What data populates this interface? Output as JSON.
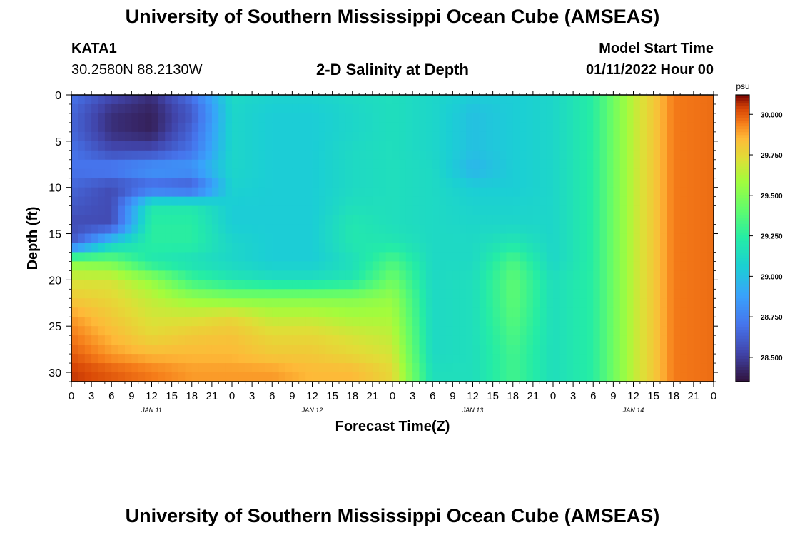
{
  "header": {
    "title": "University of Southern Mississippi Ocean Cube (AMSEAS)",
    "station_id": "KATA1",
    "station_coords": "30.2580N  88.2130W",
    "plot_title": "2-D Salinity at Depth",
    "model_start_label": "Model Start Time",
    "model_start_value": "01/11/2022 Hour 00"
  },
  "footer": {
    "repeated_title": "University of Southern Mississippi Ocean Cube (AMSEAS)"
  },
  "chart_data": {
    "type": "heatmap",
    "title": "2-D Salinity at Depth",
    "xlabel": "Forecast Time(Z)",
    "ylabel": "Depth (ft)",
    "units": "psu",
    "x_range_hours": [
      0,
      96
    ],
    "y_range_ft": [
      0,
      31
    ],
    "y_inverted": true,
    "x_tick_labels": [
      "0",
      "3",
      "6",
      "9",
      "12",
      "15",
      "18",
      "21",
      "0",
      "3",
      "6",
      "9",
      "12",
      "15",
      "18",
      "21",
      "0",
      "3",
      "6",
      "9",
      "12",
      "15",
      "18",
      "21",
      "0",
      "3",
      "6",
      "9",
      "12",
      "15",
      "18",
      "21",
      "0"
    ],
    "x_tick_hours": [
      0,
      3,
      6,
      9,
      12,
      15,
      18,
      21,
      24,
      27,
      30,
      33,
      36,
      39,
      42,
      45,
      48,
      51,
      54,
      57,
      60,
      63,
      66,
      69,
      72,
      75,
      78,
      81,
      84,
      87,
      90,
      93,
      96
    ],
    "date_labels": [
      {
        "label": "JAN 11",
        "hour": 12
      },
      {
        "label": "JAN 12",
        "hour": 36
      },
      {
        "label": "JAN 13",
        "hour": 60
      },
      {
        "label": "JAN 14",
        "hour": 84
      }
    ],
    "y_tick_labels": [
      "0",
      "5",
      "10",
      "15",
      "20",
      "25",
      "30"
    ],
    "y_tick_values": [
      0,
      5,
      10,
      15,
      20,
      25,
      30
    ],
    "colorbar": {
      "label": "psu",
      "range": [
        28.35,
        30.12
      ],
      "tick_values": [
        28.5,
        28.75,
        29.0,
        29.25,
        29.5,
        29.75,
        30.0
      ],
      "tick_labels": [
        "28.500",
        "28.750",
        "29.000",
        "29.250",
        "29.500",
        "29.750",
        "30.000"
      ],
      "colormap": "turbo"
    },
    "depth_levels_ft": [
      0,
      2,
      4,
      6,
      8,
      10,
      12,
      14,
      16,
      18,
      20,
      22,
      24,
      26,
      28,
      30
    ],
    "time_hours": [
      0,
      6,
      12,
      18,
      24,
      30,
      36,
      42,
      48,
      54,
      60,
      66,
      72,
      78,
      84,
      90,
      96
    ],
    "salinity_psu": [
      [
        28.7,
        28.55,
        28.45,
        28.7,
        29.12,
        29.08,
        29.08,
        29.12,
        29.15,
        29.1,
        29.05,
        29.05,
        29.1,
        29.25,
        29.65,
        29.95,
        29.97
      ],
      [
        28.65,
        28.45,
        28.4,
        28.6,
        29.1,
        29.05,
        29.05,
        29.1,
        29.15,
        29.1,
        29.0,
        29.05,
        29.1,
        29.25,
        29.65,
        29.95,
        29.97
      ],
      [
        28.65,
        28.45,
        28.4,
        28.65,
        29.1,
        29.05,
        29.05,
        29.1,
        29.15,
        29.1,
        29.0,
        29.05,
        29.1,
        29.25,
        29.65,
        29.95,
        29.97
      ],
      [
        28.7,
        28.55,
        28.55,
        28.7,
        29.1,
        29.05,
        29.05,
        29.12,
        29.15,
        29.1,
        29.0,
        29.05,
        29.1,
        29.25,
        29.65,
        29.95,
        29.97
      ],
      [
        28.7,
        28.75,
        28.85,
        28.85,
        29.1,
        29.05,
        29.05,
        29.12,
        29.15,
        29.12,
        28.95,
        29.05,
        29.1,
        29.25,
        29.65,
        29.95,
        29.97
      ],
      [
        28.65,
        28.55,
        28.65,
        28.6,
        29.08,
        29.05,
        29.05,
        29.12,
        29.15,
        29.12,
        29.05,
        29.05,
        29.1,
        29.25,
        29.65,
        29.95,
        29.97
      ],
      [
        28.6,
        28.55,
        29.2,
        29.2,
        29.05,
        29.05,
        29.05,
        29.15,
        29.15,
        29.12,
        29.08,
        29.08,
        29.1,
        29.25,
        29.65,
        29.95,
        29.97
      ],
      [
        28.55,
        28.55,
        29.25,
        29.25,
        29.05,
        29.05,
        29.05,
        29.2,
        29.15,
        29.12,
        29.1,
        29.1,
        29.1,
        29.25,
        29.65,
        29.95,
        29.97
      ],
      [
        28.6,
        29.05,
        29.25,
        29.25,
        29.1,
        29.05,
        29.05,
        29.2,
        29.2,
        29.12,
        29.12,
        29.2,
        29.1,
        29.25,
        29.65,
        29.95,
        29.97
      ],
      [
        29.5,
        29.45,
        29.2,
        29.15,
        29.1,
        29.05,
        29.05,
        29.15,
        29.35,
        29.12,
        29.12,
        29.35,
        29.1,
        29.25,
        29.65,
        29.95,
        29.97
      ],
      [
        29.7,
        29.7,
        29.55,
        29.3,
        29.2,
        29.15,
        29.15,
        29.2,
        29.45,
        29.12,
        29.15,
        29.4,
        29.15,
        29.25,
        29.65,
        29.95,
        29.97
      ],
      [
        29.8,
        29.75,
        29.65,
        29.55,
        29.5,
        29.5,
        29.5,
        29.5,
        29.55,
        29.12,
        29.15,
        29.4,
        29.15,
        29.25,
        29.65,
        29.95,
        29.97
      ],
      [
        29.9,
        29.8,
        29.7,
        29.7,
        29.75,
        29.65,
        29.65,
        29.6,
        29.6,
        29.12,
        29.15,
        29.38,
        29.15,
        29.25,
        29.65,
        29.95,
        29.97
      ],
      [
        29.95,
        29.85,
        29.75,
        29.8,
        29.82,
        29.75,
        29.75,
        29.7,
        29.65,
        29.12,
        29.15,
        29.35,
        29.15,
        29.25,
        29.65,
        29.95,
        29.97
      ],
      [
        30.0,
        29.9,
        29.85,
        29.85,
        29.85,
        29.8,
        29.8,
        29.75,
        29.7,
        29.12,
        29.15,
        29.32,
        29.15,
        29.25,
        29.65,
        29.95,
        29.97
      ],
      [
        30.05,
        30.0,
        29.95,
        29.9,
        29.9,
        29.9,
        29.85,
        29.85,
        29.75,
        29.15,
        29.15,
        29.32,
        29.15,
        29.25,
        29.65,
        29.95,
        29.97
      ]
    ]
  }
}
